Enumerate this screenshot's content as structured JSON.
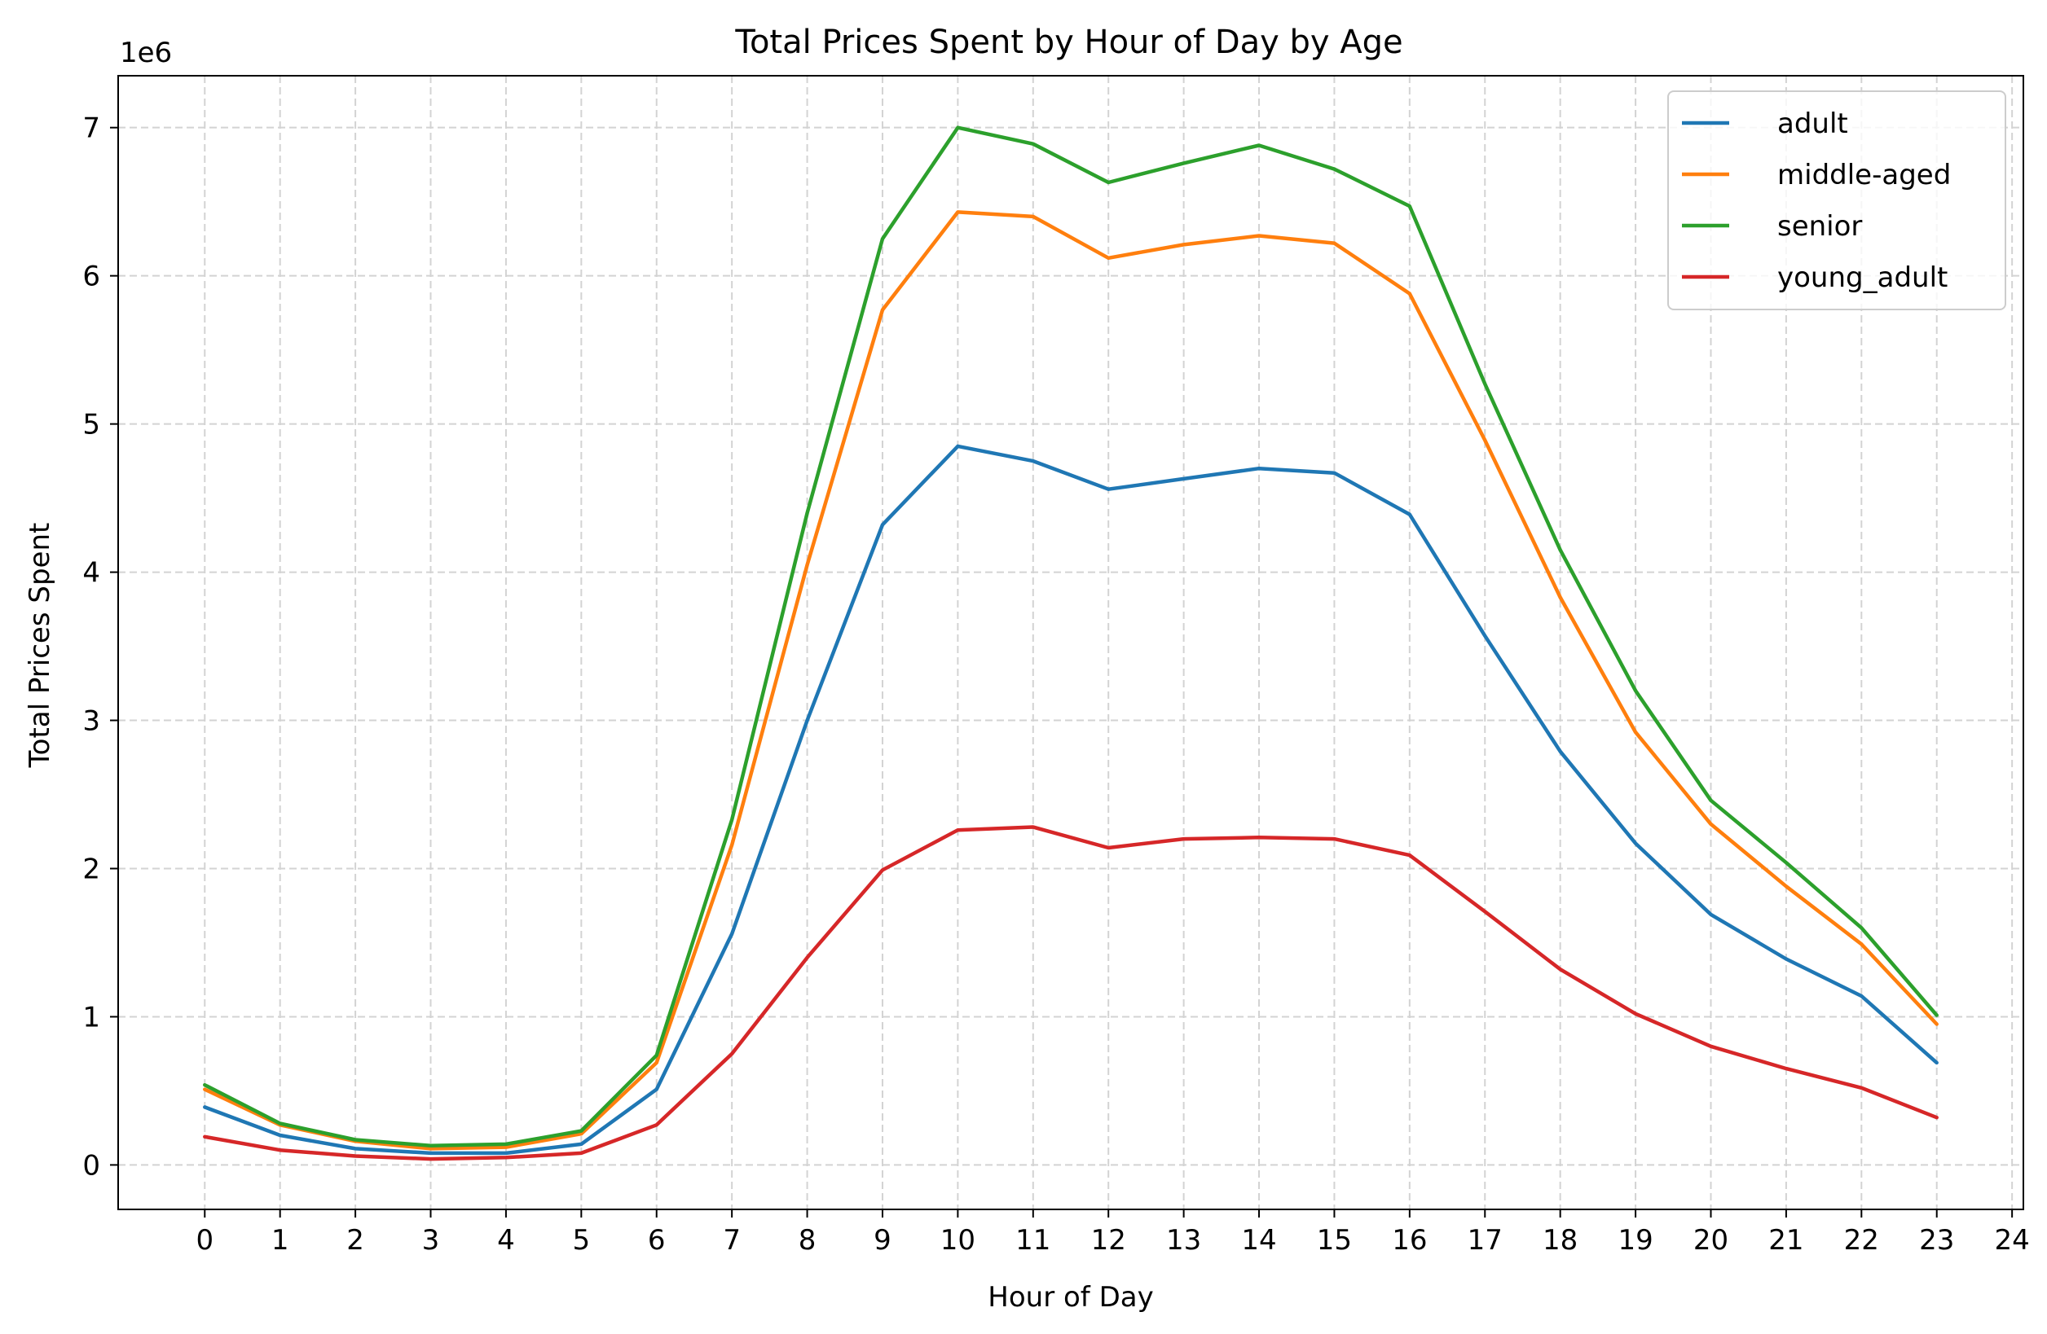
{
  "chart_data": {
    "type": "line",
    "title": "Total Prices Spent by Hour of Day by Age",
    "xlabel": "Hour of Day",
    "ylabel": "Total Prices Spent",
    "y_offset_label": "1e6",
    "xlim": [
      -1.15,
      24.15
    ],
    "ylim": [
      -300000,
      7350000
    ],
    "x_ticks": [
      0,
      1,
      2,
      3,
      4,
      5,
      6,
      7,
      8,
      9,
      10,
      11,
      12,
      13,
      14,
      15,
      16,
      17,
      18,
      19,
      20,
      21,
      22,
      23,
      24
    ],
    "y_ticks": [
      0,
      1000000,
      2000000,
      3000000,
      4000000,
      5000000,
      6000000,
      7000000
    ],
    "y_tick_labels": [
      "0",
      "1",
      "2",
      "3",
      "4",
      "5",
      "6",
      "7"
    ],
    "grid": true,
    "legend_position": "top-right",
    "x": [
      0,
      1,
      2,
      3,
      4,
      5,
      6,
      7,
      8,
      9,
      10,
      11,
      12,
      13,
      14,
      15,
      16,
      17,
      18,
      19,
      20,
      21,
      22,
      23
    ],
    "series": [
      {
        "name": "adult",
        "color": "#1f77b4",
        "values": [
          390000,
          200000,
          110000,
          80000,
          80000,
          140000,
          510000,
          1560000,
          3000000,
          4320000,
          4850000,
          4750000,
          4560000,
          4630000,
          4700000,
          4670000,
          4390000,
          3570000,
          2790000,
          2170000,
          1690000,
          1390000,
          1140000,
          690000
        ]
      },
      {
        "name": "middle-aged",
        "color": "#ff7f0e",
        "values": [
          510000,
          270000,
          160000,
          110000,
          120000,
          210000,
          690000,
          2160000,
          4050000,
          5770000,
          6430000,
          6400000,
          6120000,
          6210000,
          6270000,
          6220000,
          5880000,
          4890000,
          3830000,
          2920000,
          2300000,
          1880000,
          1490000,
          950000
        ]
      },
      {
        "name": "senior",
        "color": "#2ca02c",
        "values": [
          540000,
          280000,
          170000,
          130000,
          140000,
          230000,
          740000,
          2330000,
          4400000,
          6250000,
          7000000,
          6890000,
          6630000,
          6760000,
          6880000,
          6720000,
          6470000,
          5270000,
          4150000,
          3200000,
          2460000,
          2040000,
          1600000,
          1010000
        ]
      },
      {
        "name": "young_adult",
        "color": "#d62728",
        "values": [
          190000,
          100000,
          60000,
          40000,
          50000,
          80000,
          270000,
          750000,
          1400000,
          1990000,
          2260000,
          2280000,
          2140000,
          2200000,
          2210000,
          2200000,
          2090000,
          1710000,
          1320000,
          1020000,
          800000,
          650000,
          520000,
          320000
        ]
      }
    ]
  }
}
